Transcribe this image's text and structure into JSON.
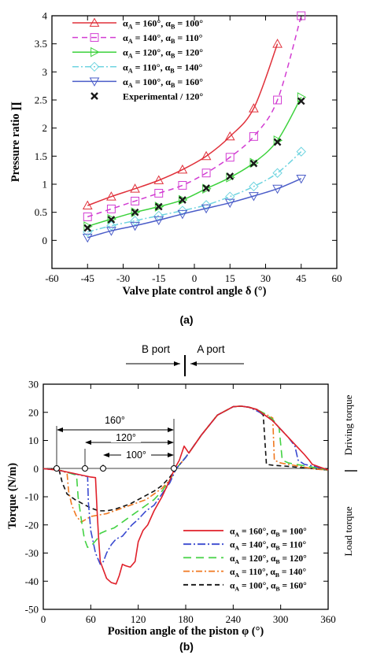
{
  "panels": {
    "a": {
      "label": "(a)"
    },
    "b": {
      "label": "(b)",
      "port_b": "B port",
      "port_a": "A port",
      "side_upper": "Driving torque",
      "side_lower": "Load torque",
      "dims": [
        "160°",
        "120°",
        "100°"
      ]
    }
  },
  "chart_data": [
    {
      "type": "line",
      "xlabel": "Valve plate control angle δ (°)",
      "ylabel": "Pressure ratio ∏",
      "xlim": [
        -60,
        60
      ],
      "ylim": [
        -0.5,
        4
      ],
      "xticks": [
        "-60",
        "-45",
        "-30",
        "-15",
        "0",
        "15",
        "30",
        "45",
        "60"
      ],
      "yticks": [
        "0",
        "0.5",
        "1",
        "1.5",
        "2",
        "2.5",
        "3",
        "3.5",
        "4"
      ],
      "legend_position": "top-left",
      "series": [
        {
          "name": "αA = 160°, αB = 100°",
          "color": "#e0303a",
          "dash": "",
          "marker": "triangle-up",
          "x": [
            -45,
            -35,
            -25,
            -15,
            -5,
            5,
            15,
            25,
            35
          ],
          "y": [
            0.62,
            0.78,
            0.92,
            1.07,
            1.26,
            1.5,
            1.85,
            2.35,
            3.5
          ]
        },
        {
          "name": "αA = 140°, αB = 110°",
          "color": "#d23cd2",
          "dash": "7,5",
          "marker": "square",
          "x": [
            -45,
            -35,
            -25,
            -15,
            -5,
            5,
            15,
            25,
            35,
            45
          ],
          "y": [
            0.42,
            0.56,
            0.7,
            0.84,
            0.98,
            1.2,
            1.48,
            1.85,
            2.5,
            4.0
          ]
        },
        {
          "name": "αA = 120°, αB = 120°",
          "color": "#3cd23c",
          "dash": "",
          "marker": "triangle-right",
          "x": [
            -45,
            -35,
            -25,
            -15,
            -5,
            5,
            15,
            25,
            35,
            45
          ],
          "y": [
            0.25,
            0.38,
            0.5,
            0.6,
            0.72,
            0.92,
            1.12,
            1.38,
            1.78,
            2.55
          ]
        },
        {
          "name": "αA = 110°, αB = 140°",
          "color": "#6fd4e0",
          "dash": "8,3,2,3",
          "marker": "diamond",
          "x": [
            -45,
            -35,
            -25,
            -15,
            -5,
            5,
            15,
            25,
            35,
            45
          ],
          "y": [
            0.15,
            0.26,
            0.35,
            0.44,
            0.53,
            0.63,
            0.78,
            0.96,
            1.2,
            1.58
          ]
        },
        {
          "name": "αA = 100°, αB = 160°",
          "color": "#4a5cc8",
          "dash": "",
          "marker": "triangle-down",
          "x": [
            -45,
            -35,
            -25,
            -15,
            -5,
            5,
            15,
            25,
            35,
            45
          ],
          "y": [
            0.05,
            0.17,
            0.26,
            0.36,
            0.47,
            0.57,
            0.67,
            0.79,
            0.92,
            1.1
          ]
        },
        {
          "name": "Experimental / 120°",
          "color": "#1a1a1a",
          "marker": "x",
          "x": [
            -45,
            -35,
            -25,
            -15,
            -5,
            5,
            15,
            25,
            35,
            45
          ],
          "y": [
            0.22,
            0.37,
            0.5,
            0.6,
            0.72,
            0.93,
            1.14,
            1.37,
            1.75,
            2.48
          ]
        }
      ]
    },
    {
      "type": "line",
      "xlabel": "Position angle of the piston φ (°)",
      "ylabel": "Torque (N/m)",
      "xlim": [
        0,
        360
      ],
      "ylim": [
        -50,
        30
      ],
      "xticks": [
        "0",
        "60",
        "120",
        "180",
        "240",
        "300",
        "360"
      ],
      "yticks": [
        "-50",
        "-40",
        "-30",
        "-20",
        "-10",
        "0",
        "10",
        "20",
        "30"
      ],
      "legend_position": "lower-right",
      "series": [
        {
          "name": "αA = 160°, αB = 100°",
          "color": "#e0202a",
          "dash": "",
          "x": [
            0,
            20,
            60,
            66,
            68,
            70,
            72,
            76,
            80,
            86,
            92,
            96,
            100,
            104,
            110,
            116,
            120,
            126,
            132,
            140,
            150,
            160,
            166,
            172,
            178,
            184,
            200,
            220,
            240,
            250,
            260,
            270,
            280,
            290,
            300,
            310,
            320,
            330,
            336,
            340,
            350,
            360
          ],
          "y": [
            0,
            -0.6,
            -3,
            -3.2,
            -15,
            -25,
            -33,
            -36,
            -39,
            -40.5,
            -41,
            -38,
            -34,
            -34.5,
            -35,
            -33,
            -26,
            -22,
            -20,
            -15,
            -10,
            -4,
            0,
            3,
            8,
            5.5,
            12,
            19,
            22,
            22.2,
            21.8,
            21,
            19,
            17,
            14,
            11,
            8,
            5,
            3,
            1.5,
            0.5,
            -0.5
          ]
        },
        {
          "name": "αA = 140°, αB = 110°",
          "color": "#3a4ad0",
          "dash": "10,3,2,3",
          "x": [
            0,
            20,
            50,
            56,
            57,
            60,
            66,
            72,
            76,
            80,
            86,
            92,
            100,
            106,
            112,
            120,
            130,
            140,
            150,
            160,
            168,
            180,
            200,
            220,
            240,
            250,
            260,
            270,
            280,
            290,
            300,
            310,
            318,
            322,
            330,
            340,
            350,
            360
          ],
          "y": [
            0,
            -0.6,
            -2.5,
            -2.8,
            -12,
            -22,
            -30,
            -34,
            -33,
            -30,
            -27,
            -25,
            -24,
            -22,
            -20,
            -18,
            -15,
            -13,
            -9,
            -5,
            0,
            4,
            12,
            19,
            22,
            22.2,
            21.8,
            20.5,
            19,
            17,
            14,
            11,
            8,
            3,
            1.5,
            1,
            0.3,
            -0.5
          ]
        },
        {
          "name": "αA = 120°, αB = 120°",
          "color": "#44d244",
          "dash": "10,6",
          "x": [
            0,
            20,
            38,
            42,
            44,
            48,
            52,
            56,
            62,
            68,
            72,
            80,
            90,
            100,
            110,
            120,
            130,
            140,
            150,
            160,
            168,
            180,
            200,
            220,
            240,
            250,
            260,
            270,
            280,
            290,
            298,
            302,
            310,
            320,
            330,
            340,
            350,
            360
          ],
          "y": [
            0,
            -0.5,
            -2,
            -2.2,
            -10,
            -18,
            -25,
            -28,
            -27,
            -25,
            -23,
            -22,
            -21,
            -19,
            -17,
            -15,
            -13,
            -11,
            -8,
            -4,
            0,
            4,
            12,
            19,
            22,
            22.2,
            21.8,
            21,
            19.5,
            17.5,
            14.5,
            3,
            2,
            1.5,
            1,
            0.5,
            0,
            -0.5
          ]
        },
        {
          "name": "αA = 110°, αB = 140°",
          "color": "#f07820",
          "dash": "8,3,2,3",
          "x": [
            0,
            20,
            30,
            32,
            36,
            42,
            48,
            54,
            60,
            70,
            80,
            90,
            100,
            110,
            120,
            130,
            140,
            150,
            160,
            168,
            180,
            200,
            220,
            240,
            250,
            260,
            270,
            280,
            290,
            292,
            300,
            310,
            320,
            330,
            340,
            350,
            360
          ],
          "y": [
            0,
            -0.5,
            -1.5,
            -8,
            -13,
            -17,
            -19,
            -18,
            -17,
            -16.5,
            -16,
            -15,
            -14,
            -13,
            -12,
            -11,
            -9,
            -7,
            -4,
            0,
            4,
            12,
            19,
            22,
            22.2,
            21.8,
            21,
            19.5,
            18,
            3,
            2,
            1.5,
            1,
            0.5,
            0,
            -0.3,
            -0.5
          ]
        },
        {
          "name": "αA = 100°, αB = 160°",
          "color": "#111111",
          "dash": "6,4",
          "x": [
            0,
            15,
            20,
            24,
            30,
            40,
            50,
            60,
            70,
            80,
            90,
            100,
            110,
            120,
            130,
            140,
            150,
            160,
            168,
            180,
            200,
            220,
            240,
            250,
            260,
            270,
            278,
            282,
            290,
            300,
            310,
            320,
            330,
            340,
            350,
            360
          ],
          "y": [
            0,
            -0.2,
            -0.5,
            -5,
            -9,
            -11,
            -12.5,
            -14,
            -15,
            -15,
            -14.5,
            -13.5,
            -12.5,
            -11,
            -9.5,
            -8,
            -6,
            -3,
            0,
            4,
            12,
            19,
            22,
            22.2,
            21.8,
            21,
            19,
            1.5,
            1.2,
            1,
            0.8,
            0.5,
            0.3,
            0,
            -0.3,
            -0.5
          ]
        }
      ]
    }
  ]
}
